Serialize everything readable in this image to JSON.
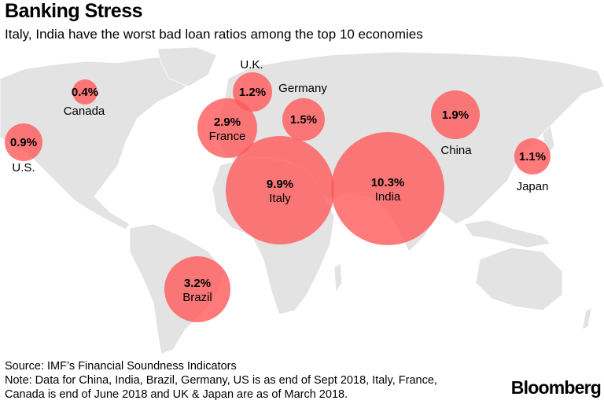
{
  "header": {
    "title": "Banking Stress",
    "subtitle": "Italy, India have the worst bad loan ratios among the top 10 economies"
  },
  "colors": {
    "bubble": "#ff5a5a",
    "land": "#e3e3e3",
    "border": "#ffffff"
  },
  "map_data": {
    "metric": "Bad loan ratio",
    "countries": [
      {
        "name": "Canada",
        "value": 0.4,
        "label": "0.4%"
      },
      {
        "name": "U.S.",
        "value": 0.9,
        "label": "0.9%"
      },
      {
        "name": "U.K.",
        "value": 1.2,
        "label": "1.2%"
      },
      {
        "name": "Germany",
        "value": 1.5,
        "label": "1.5%"
      },
      {
        "name": "France",
        "value": 2.9,
        "label": "2.9%"
      },
      {
        "name": "Italy",
        "value": 9.9,
        "label": "9.9%"
      },
      {
        "name": "India",
        "value": 10.3,
        "label": "10.3%"
      },
      {
        "name": "China",
        "value": 1.9,
        "label": "1.9%"
      },
      {
        "name": "Japan",
        "value": 1.1,
        "label": "1.1%"
      },
      {
        "name": "Brazil",
        "value": 3.2,
        "label": "3.2%"
      }
    ]
  },
  "footer": {
    "source": "Source: IMF’s Financial Soundness Indicators",
    "note_line1": "Note: Data for China, India, Brazil, Germany, US is as end of Sept 2018, Italy, France,",
    "note_line2": "Canada is end of June 2018 and UK & Japan are as of March 2018.",
    "logo": "Bloomberg"
  }
}
